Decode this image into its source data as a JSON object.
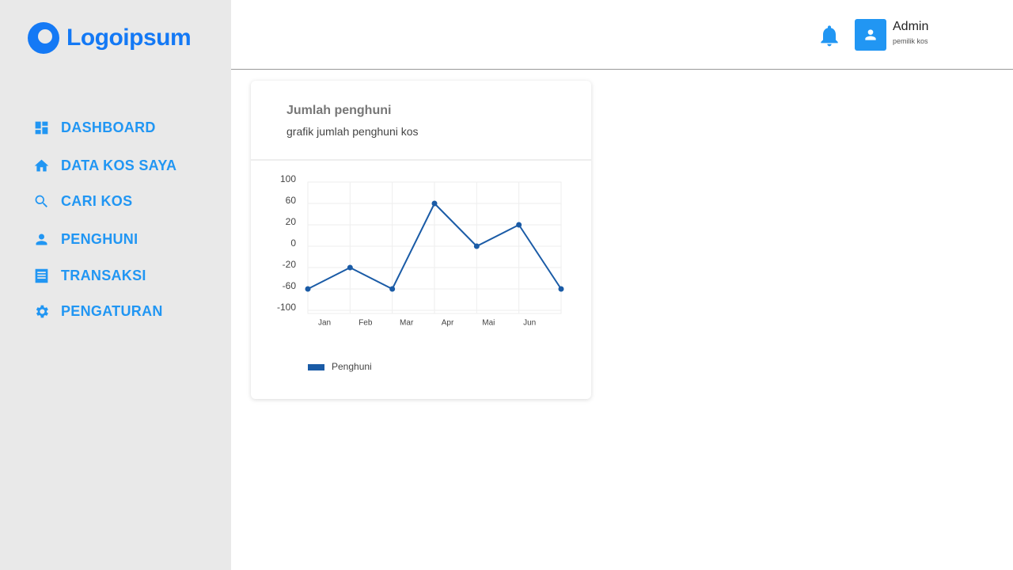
{
  "sidebar": {
    "logo": "Logoipsum",
    "menu": [
      "DASHBOARD",
      "DATA KOS SAYA",
      "CARI KOS",
      "PENGHUNI",
      "TRANSAKSI",
      "PENGATURAN"
    ]
  },
  "header": {
    "user_name": "Admin",
    "user_role": "pemilik kos"
  },
  "chart_data": {
    "type": "line",
    "title": "Jumlah penghuni",
    "subtitle": "grafik jumlah penghuni kos",
    "categories": [
      "Jan",
      "Feb",
      "Mar",
      "Apr",
      "Mai",
      "Jun",
      null
    ],
    "series": [
      {
        "name": "Penghuni",
        "color": "#1a5ba6",
        "values": [
          -60,
          -20,
          -60,
          60,
          0,
          20,
          -60
        ]
      }
    ],
    "ylim": [
      -100,
      100
    ],
    "yticks": [
      -100,
      -60,
      -20,
      0,
      20,
      60,
      100
    ],
    "grid": true
  }
}
